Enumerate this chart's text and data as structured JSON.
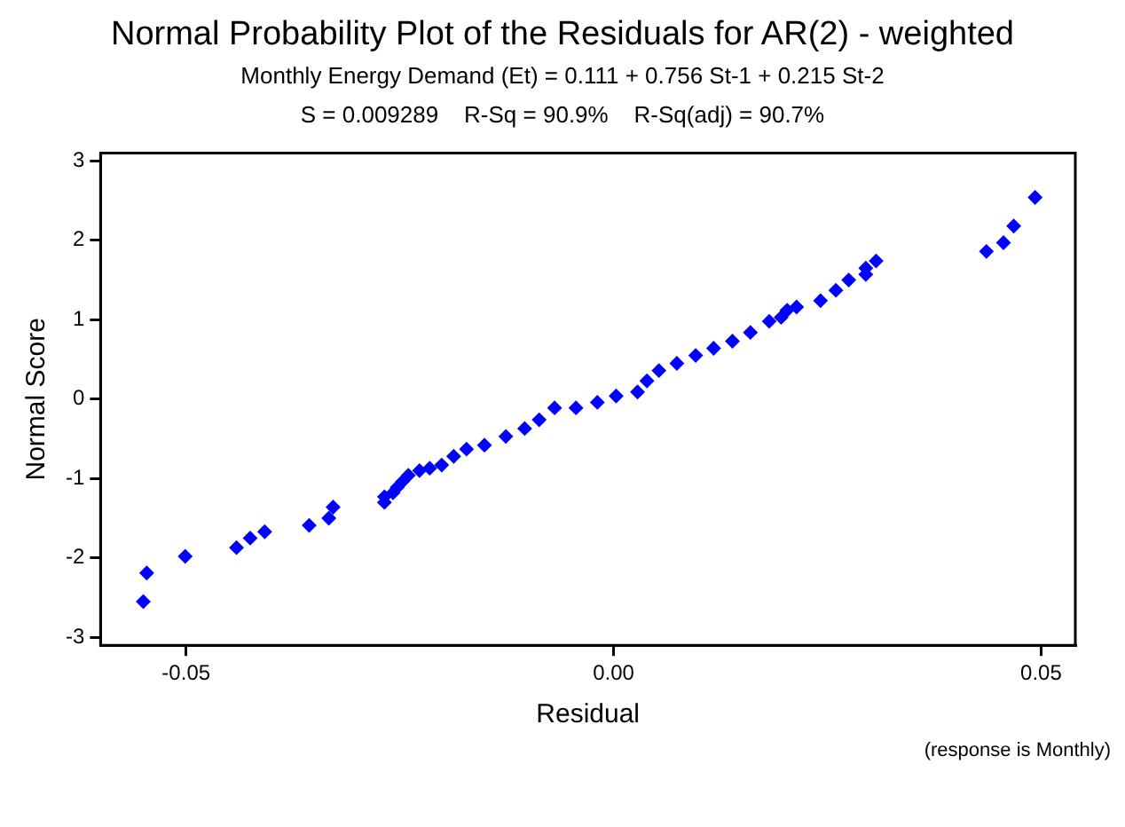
{
  "chart_data": {
    "type": "scatter",
    "title": "Normal Probability Plot of the Residuals for AR(2) - weighted",
    "subtitle": "Monthly Energy Demand (Et) = 0.111 + 0.756 St-1 + 0.215 St-2",
    "annotations": [
      "S = 0.009289    R-Sq = 90.9%    R-Sq(adj) = 90.7%",
      "(response is Monthly)"
    ],
    "xlabel": "Residual",
    "ylabel": "Normal Score",
    "x": [
      -0.055,
      -0.0546,
      -0.0501,
      -0.0441,
      -0.0425,
      -0.0408,
      -0.0356,
      -0.0333,
      -0.0328,
      -0.0268,
      -0.0268,
      -0.0258,
      -0.0253,
      -0.0247,
      -0.024,
      -0.0227,
      -0.0215,
      -0.0201,
      -0.0187,
      -0.0172,
      -0.0151,
      -0.0126,
      -0.0104,
      -0.0087,
      -0.0069,
      -0.0044,
      -0.0019,
      0.0003,
      0.0028,
      0.0039,
      0.0053,
      0.0074,
      0.0096,
      0.0117,
      0.0139,
      0.016,
      0.0182,
      0.0196,
      0.0203,
      0.0214,
      0.0242,
      0.026,
      0.0275,
      0.0295,
      0.0295,
      0.0307,
      0.0436,
      0.0456,
      0.0468,
      0.0493
    ],
    "values": [
      -2.55,
      -2.19,
      -1.98,
      -1.87,
      -1.75,
      -1.67,
      -1.59,
      -1.5,
      -1.36,
      -1.3,
      -1.23,
      -1.18,
      -1.11,
      -1.04,
      -0.96,
      -0.9,
      -0.87,
      -0.83,
      -0.72,
      -0.63,
      -0.58,
      -0.47,
      -0.37,
      -0.26,
      -0.11,
      -0.11,
      -0.04,
      0.04,
      0.09,
      0.23,
      0.36,
      0.45,
      0.55,
      0.64,
      0.73,
      0.84,
      0.98,
      1.03,
      1.12,
      1.16,
      1.24,
      1.37,
      1.5,
      1.57,
      1.65,
      1.74,
      1.86,
      1.97,
      2.18,
      2.54
    ],
    "color": "#0000ff",
    "marker": "diamond",
    "grid": false,
    "legend": false,
    "xlim": [
      -0.06,
      0.054
    ],
    "ylim": [
      -3.1,
      3.1
    ],
    "xticks": [
      {
        "value": -0.05,
        "label": "-0.05"
      },
      {
        "value": 0,
        "label": "0.00"
      },
      {
        "value": 0.05,
        "label": "0.05"
      }
    ],
    "yticks": [
      -3,
      -2,
      -1,
      0,
      1,
      2,
      3
    ]
  }
}
